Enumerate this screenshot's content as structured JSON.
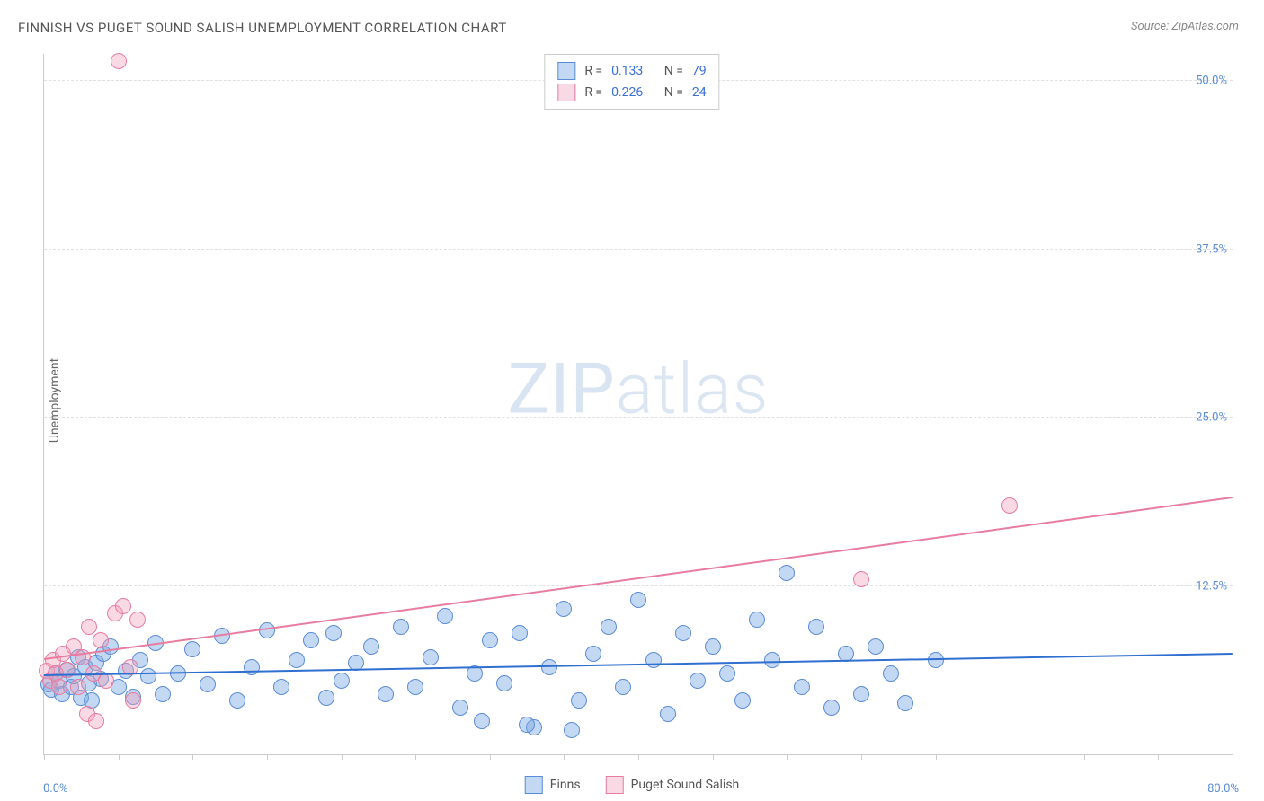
{
  "title": "FINNISH VS PUGET SOUND SALISH UNEMPLOYMENT CORRELATION CHART",
  "source": "Source: ZipAtlas.com",
  "yaxis_title": "Unemployment",
  "watermark_zip": "ZIP",
  "watermark_atlas": "atlas",
  "xaxis": {
    "min": 0.0,
    "max": 80.0,
    "label_min": "0.0%",
    "label_max": "80.0%",
    "tick_step": 5.0
  },
  "yaxis": {
    "min": 0.0,
    "max": 52.0,
    "ticks": [
      12.5,
      25.0,
      37.5,
      50.0
    ],
    "tick_labels": [
      "12.5%",
      "25.0%",
      "37.5%",
      "50.0%"
    ]
  },
  "colors": {
    "blue_fill": "rgba(122,168,226,0.45)",
    "blue_stroke": "#5b8dd6",
    "pink_fill": "rgba(240,160,185,0.40)",
    "pink_stroke": "#e87ca0",
    "blue_line": "#2f6fd0",
    "pink_line": "#e87ca0",
    "grid": "#e0e0e0",
    "axis": "#cccccc",
    "title_color": "#555555",
    "tick_label_color": "#5b8dd6",
    "stat_color": "#3a6fd8"
  },
  "marker_radius": 9,
  "series": [
    {
      "name": "Finns",
      "color_key": "blue",
      "stats": {
        "r_label": "R =",
        "r": "0.133",
        "n_label": "N =",
        "n": "79"
      },
      "trend": {
        "y_at_xmin": 5.8,
        "y_at_xmax": 7.4
      },
      "points": [
        [
          0.3,
          5.2
        ],
        [
          0.5,
          4.8
        ],
        [
          0.8,
          6.0
        ],
        [
          1.0,
          5.5
        ],
        [
          1.2,
          4.5
        ],
        [
          1.5,
          6.3
        ],
        [
          1.8,
          5.0
        ],
        [
          2.0,
          5.8
        ],
        [
          2.3,
          7.2
        ],
        [
          2.5,
          4.2
        ],
        [
          2.8,
          6.5
        ],
        [
          3.0,
          5.3
        ],
        [
          3.2,
          4.0
        ],
        [
          3.5,
          6.8
        ],
        [
          3.8,
          5.6
        ],
        [
          4.0,
          7.5
        ],
        [
          4.5,
          8.0
        ],
        [
          5.0,
          5.0
        ],
        [
          5.5,
          6.2
        ],
        [
          6.0,
          4.3
        ],
        [
          6.5,
          7.0
        ],
        [
          7.0,
          5.8
        ],
        [
          7.5,
          8.3
        ],
        [
          8.0,
          4.5
        ],
        [
          9.0,
          6.0
        ],
        [
          10.0,
          7.8
        ],
        [
          11.0,
          5.2
        ],
        [
          12.0,
          8.8
        ],
        [
          13.0,
          4.0
        ],
        [
          14.0,
          6.5
        ],
        [
          15.0,
          9.2
        ],
        [
          16.0,
          5.0
        ],
        [
          17.0,
          7.0
        ],
        [
          18.0,
          8.5
        ],
        [
          19.0,
          4.2
        ],
        [
          19.5,
          9.0
        ],
        [
          20.0,
          5.5
        ],
        [
          21.0,
          6.8
        ],
        [
          22.0,
          8.0
        ],
        [
          23.0,
          4.5
        ],
        [
          24.0,
          9.5
        ],
        [
          25.0,
          5.0
        ],
        [
          26.0,
          7.2
        ],
        [
          27.0,
          10.3
        ],
        [
          28.0,
          3.5
        ],
        [
          29.0,
          6.0
        ],
        [
          30.0,
          8.5
        ],
        [
          29.5,
          2.5
        ],
        [
          31.0,
          5.3
        ],
        [
          32.0,
          9.0
        ],
        [
          33.0,
          2.0
        ],
        [
          34.0,
          6.5
        ],
        [
          35.0,
          10.8
        ],
        [
          32.5,
          2.2
        ],
        [
          36.0,
          4.0
        ],
        [
          37.0,
          7.5
        ],
        [
          35.5,
          1.8
        ],
        [
          38.0,
          9.5
        ],
        [
          39.0,
          5.0
        ],
        [
          40.0,
          11.5
        ],
        [
          41.0,
          7.0
        ],
        [
          42.0,
          3.0
        ],
        [
          43.0,
          9.0
        ],
        [
          44.0,
          5.5
        ],
        [
          45.0,
          8.0
        ],
        [
          46.0,
          6.0
        ],
        [
          47.0,
          4.0
        ],
        [
          48.0,
          10.0
        ],
        [
          49.0,
          7.0
        ],
        [
          50.0,
          13.5
        ],
        [
          51.0,
          5.0
        ],
        [
          52.0,
          9.5
        ],
        [
          53.0,
          3.5
        ],
        [
          54.0,
          7.5
        ],
        [
          55.0,
          4.5
        ],
        [
          56.0,
          8.0
        ],
        [
          57.0,
          6.0
        ],
        [
          58.0,
          3.8
        ],
        [
          60.0,
          7.0
        ]
      ]
    },
    {
      "name": "Puget Sound Salish",
      "color_key": "pink",
      "stats": {
        "r_label": "R =",
        "r": "0.226",
        "n_label": "N =",
        "n": "24"
      },
      "trend": {
        "y_at_xmin": 7.0,
        "y_at_xmax": 19.0
      },
      "points": [
        [
          0.2,
          6.2
        ],
        [
          0.4,
          5.5
        ],
        [
          0.6,
          7.0
        ],
        [
          0.8,
          6.0
        ],
        [
          1.0,
          5.0
        ],
        [
          1.3,
          7.5
        ],
        [
          1.6,
          6.3
        ],
        [
          2.0,
          8.0
        ],
        [
          2.3,
          5.0
        ],
        [
          2.6,
          7.2
        ],
        [
          3.0,
          9.5
        ],
        [
          3.3,
          6.0
        ],
        [
          3.8,
          8.5
        ],
        [
          4.2,
          5.5
        ],
        [
          4.8,
          10.5
        ],
        [
          5.3,
          11.0
        ],
        [
          5.8,
          6.5
        ],
        [
          6.3,
          10.0
        ],
        [
          2.9,
          3.0
        ],
        [
          3.5,
          2.5
        ],
        [
          5.0,
          51.5
        ],
        [
          6.0,
          4.0
        ],
        [
          55.0,
          13.0
        ],
        [
          65.0,
          18.5
        ]
      ]
    }
  ],
  "legend_bottom": [
    {
      "label": "Finns",
      "color_key": "blue"
    },
    {
      "label": "Puget Sound Salish",
      "color_key": "pink"
    }
  ]
}
